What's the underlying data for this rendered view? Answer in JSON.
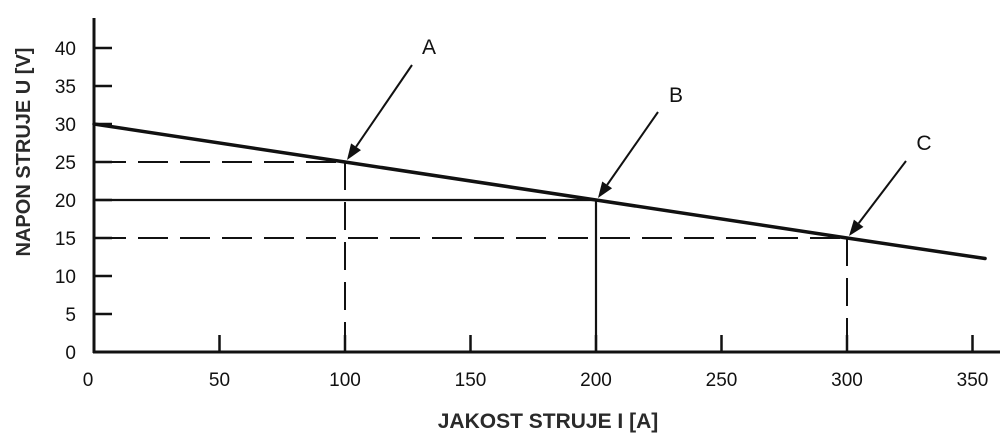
{
  "chart_data": {
    "type": "line",
    "xlabel": "JAKOST STRUJE I [A]",
    "ylabel": "NAPON STRUJE U [V]",
    "xlim": [
      0,
      360
    ],
    "ylim": [
      0,
      40
    ],
    "x_ticks": [
      0,
      50,
      100,
      150,
      200,
      250,
      300,
      350
    ],
    "y_ticks": [
      0,
      5,
      10,
      15,
      20,
      25,
      30,
      35,
      40
    ],
    "grid": false,
    "series": [
      {
        "x": [
          0,
          100,
          200,
          300,
          355
        ],
        "y": [
          30,
          25,
          20,
          15,
          12.3
        ]
      }
    ],
    "guide_lines": [
      {
        "point": "A",
        "x": 100,
        "y": 25,
        "style": "dashed"
      },
      {
        "point": "B",
        "x": 200,
        "y": 20,
        "style": "solid"
      },
      {
        "point": "C",
        "x": 300,
        "y": 15,
        "style": "dashed"
      }
    ],
    "annotations": [
      {
        "label": "A",
        "x": 100,
        "y": 25
      },
      {
        "label": "B",
        "x": 200,
        "y": 20
      },
      {
        "label": "C",
        "x": 300,
        "y": 15
      }
    ],
    "colors": {
      "line": "#111111",
      "axis_title": "#2a2a2a"
    }
  }
}
